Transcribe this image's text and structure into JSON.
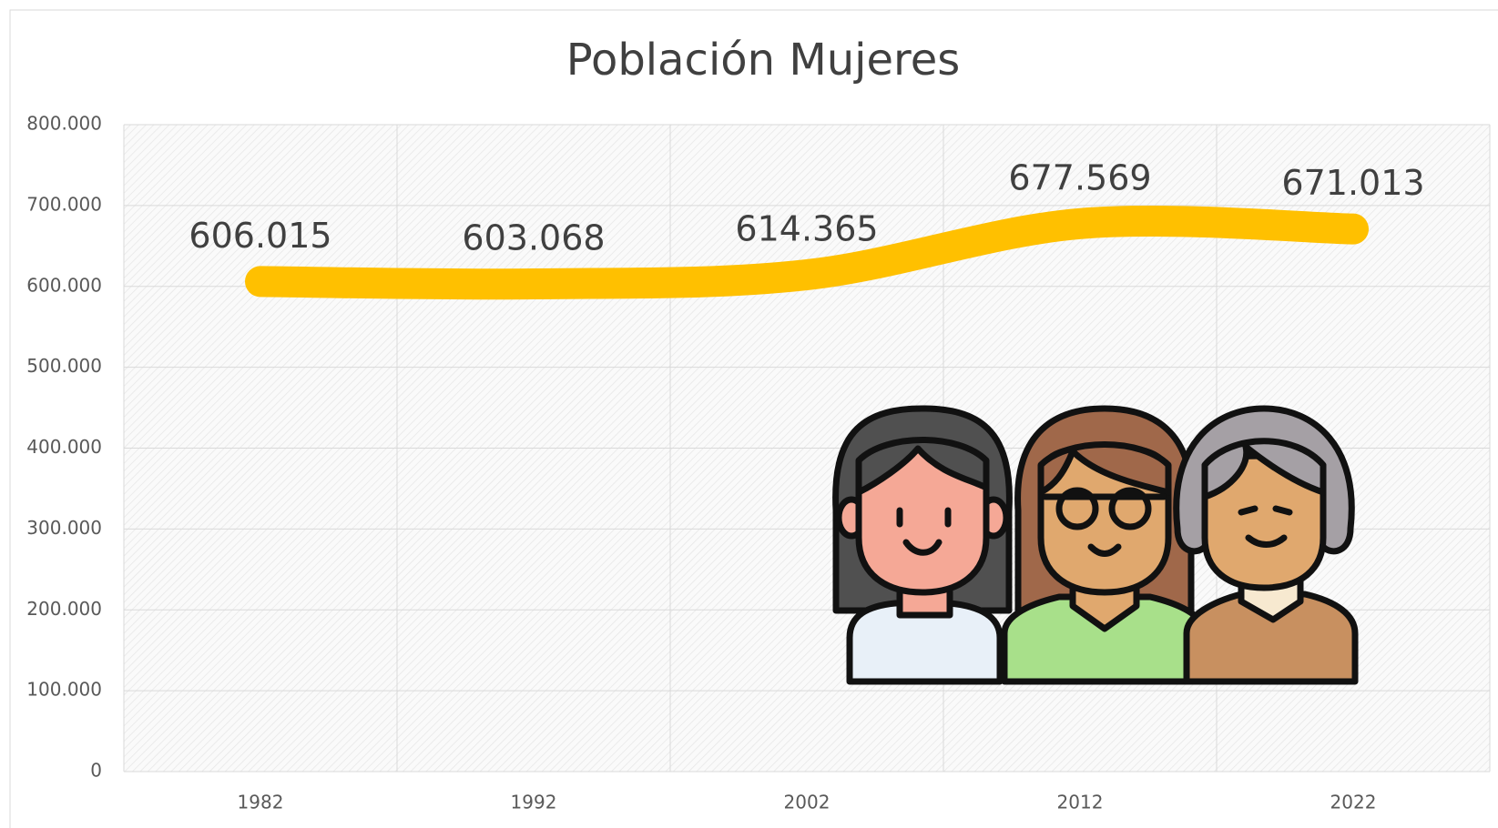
{
  "chart_data": {
    "type": "line",
    "title": "Población Mujeres",
    "categories": [
      "1982",
      "1992",
      "2002",
      "2012",
      "2022"
    ],
    "values": [
      606015,
      603068,
      614365,
      677569,
      671013
    ],
    "value_labels": [
      "606.015",
      "603.068",
      "614.365",
      "677.569",
      "671.013"
    ],
    "color": "#FFC000",
    "ylim": [
      0,
      800000
    ],
    "yticks": [
      0,
      {
        "value": 100000,
        "label": "100.000"
      },
      {
        "value": 200000,
        "label": "200.000"
      },
      {
        "value": 300000,
        "label": "300.000"
      },
      {
        "value": 400000,
        "label": "400.000"
      },
      {
        "value": 500000,
        "label": "500.000"
      },
      {
        "value": 600000,
        "label": "600.000"
      },
      {
        "value": 700000,
        "label": "700.000"
      },
      {
        "value": 800000,
        "label": "800.000"
      }
    ],
    "grid": true
  }
}
